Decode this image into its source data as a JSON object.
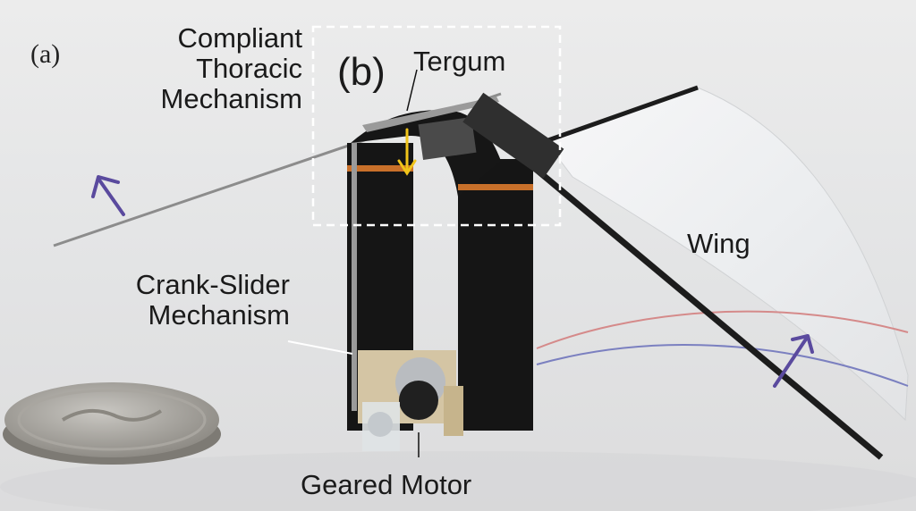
{
  "panel_labels": {
    "a": "(a)",
    "b": "(b)"
  },
  "annotations": {
    "compliant": [
      "Compliant",
      "Thoracic",
      "Mechanism"
    ],
    "tergum": "Tergum",
    "wing": "Wing",
    "crank": [
      "Crank-Slider",
      "Mechanism"
    ],
    "motor": "Geared Motor"
  },
  "colors": {
    "arrow": "#5a4a9e",
    "deflection_arrow": "#f0c419",
    "dashed_box": "#ffffff",
    "frame": "#151515",
    "copper_band": "#c8702a"
  }
}
